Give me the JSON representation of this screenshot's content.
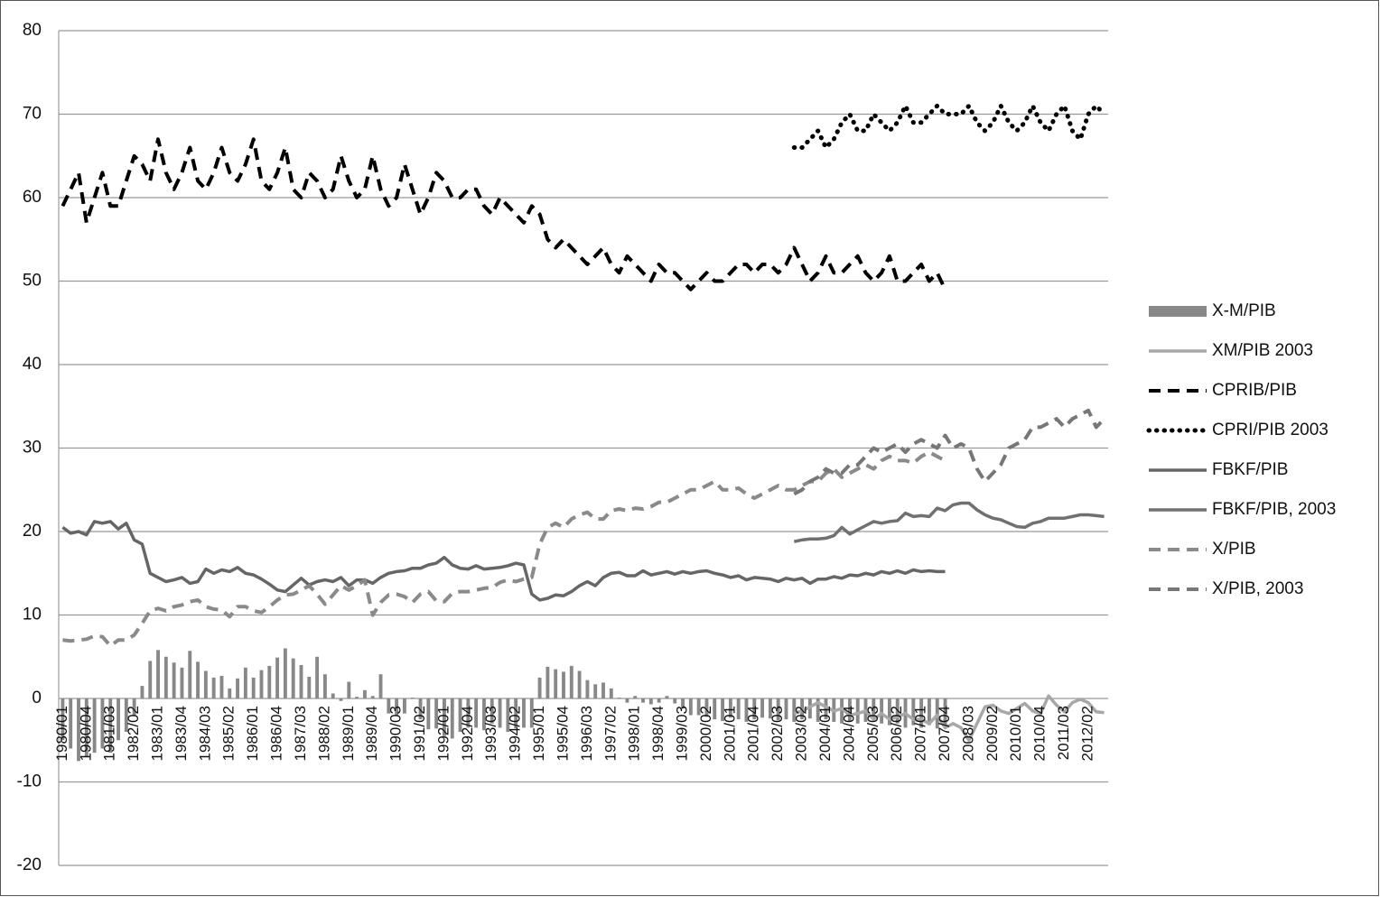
{
  "chart_data": {
    "type": "line",
    "categories": [
      "1980/01",
      null,
      null,
      "1980/04",
      null,
      null,
      "1981/03",
      null,
      null,
      "1982/02",
      null,
      null,
      "1983/01",
      null,
      null,
      "1983/04",
      null,
      null,
      "1984/03",
      null,
      null,
      "1985/02",
      null,
      null,
      "1986/01",
      null,
      null,
      "1986/04",
      null,
      null,
      "1987/03",
      null,
      null,
      "1988/02",
      null,
      null,
      "1989/01",
      null,
      null,
      "1989/04",
      null,
      null,
      "1990/03",
      null,
      null,
      "1991/02",
      null,
      null,
      "1992/01",
      null,
      null,
      "1992/04",
      null,
      null,
      "1993/03",
      null,
      null,
      "1994/02",
      null,
      null,
      "1995/01",
      null,
      null,
      "1995/04",
      null,
      null,
      "1996/03",
      null,
      null,
      "1997/02",
      null,
      null,
      "1998/01",
      null,
      null,
      "1998/04",
      null,
      null,
      "1999/03",
      null,
      null,
      "2000/02",
      null,
      null,
      "2001/01",
      null,
      null,
      "2001/04",
      null,
      null,
      "2002/03",
      null,
      null,
      "2003/02",
      null,
      null,
      "2004/01",
      null,
      null,
      "2004/04",
      null,
      null,
      "2005/03",
      null,
      null,
      "2006/02",
      null,
      null,
      "2007/01",
      null,
      null,
      "2007/04",
      null,
      null,
      "2008/03",
      null,
      null,
      "2009/02",
      null,
      null,
      "2010/01",
      null,
      null,
      "2010/04",
      null,
      null,
      "2011/03",
      null,
      null,
      "2012/02",
      null,
      null
    ],
    "ylim": [
      -20,
      80
    ],
    "yticks": [
      -20,
      -10,
      0,
      10,
      20,
      30,
      40,
      50,
      60,
      70,
      80
    ],
    "grid": true,
    "legend": "right",
    "series": [
      {
        "name": "X-M/PIB",
        "color": "#888888",
        "style": "bar",
        "values": [
          -5,
          -6,
          -7.5,
          -7,
          -6.5,
          -6,
          -6.5,
          -5,
          -4,
          -2,
          1.5,
          4.5,
          5.8,
          5,
          4.3,
          3.7,
          5.7,
          4.4,
          3.3,
          2.5,
          2.7,
          1.2,
          2.4,
          3.7,
          2.5,
          3.4,
          3.9,
          4.9,
          6,
          4.8,
          4,
          2.6,
          5,
          2.9,
          0.6,
          -0.3,
          2,
          0.2,
          1,
          0.3,
          2.9,
          -1.8,
          -2,
          -1.8,
          0.1,
          -2.5,
          -3.7,
          -3.6,
          -4.5,
          -4.8,
          -4,
          -3.5,
          -3.5,
          -3.8,
          -3,
          -3.5,
          -4,
          -3.6,
          -3.5,
          -3.5,
          2.5,
          3.8,
          3.5,
          3.2,
          3.9,
          3.3,
          2.2,
          1.7,
          1.9,
          1.2,
          0.1,
          -0.5,
          0.3,
          -0.5,
          -0.7,
          -0.5,
          0.3,
          -0.6,
          -1.2,
          -2,
          -2,
          -2.2,
          -2.5,
          -2.7,
          -2.3,
          -2.5,
          -2.8,
          -2.5,
          -2.3,
          -2.4,
          -2.6,
          -2.5,
          -2.8,
          -2.5,
          -2.4,
          -2.8,
          -2.5,
          -2.8,
          -3,
          -2.7,
          -3,
          -2.8,
          -2.5,
          -3,
          -3.2,
          -3,
          -3.5,
          -3.2,
          -3.5,
          -3.2,
          -3.6,
          -3.5,
          null,
          null,
          null,
          null,
          null,
          null,
          null,
          null,
          null,
          null,
          null,
          null,
          null,
          null,
          null,
          null,
          null,
          null,
          null,
          null
        ]
      },
      {
        "name": "XM/PIB 2003",
        "color": "#a8a8a8",
        "style": "solid",
        "values": [
          null,
          null,
          null,
          null,
          null,
          null,
          null,
          null,
          null,
          null,
          null,
          null,
          null,
          null,
          null,
          null,
          null,
          null,
          null,
          null,
          null,
          null,
          null,
          null,
          null,
          null,
          null,
          null,
          null,
          null,
          null,
          null,
          null,
          null,
          null,
          null,
          null,
          null,
          null,
          null,
          null,
          null,
          null,
          null,
          null,
          null,
          null,
          null,
          null,
          null,
          null,
          null,
          null,
          null,
          null,
          null,
          null,
          null,
          null,
          null,
          null,
          null,
          null,
          null,
          null,
          null,
          null,
          null,
          null,
          null,
          null,
          null,
          null,
          null,
          null,
          null,
          null,
          null,
          null,
          null,
          null,
          null,
          null,
          null,
          null,
          null,
          null,
          null,
          null,
          null,
          null,
          null,
          -1.8,
          -1.5,
          -1,
          -0.5,
          -1,
          -1.5,
          -1.2,
          -2,
          -1.8,
          -1.5,
          -2.5,
          -1.8,
          -2.5,
          -2.2,
          -1.8,
          -2.5,
          -2.5,
          -3,
          -2,
          -3.5,
          -3,
          -3.5,
          -5,
          -3,
          -1,
          -0.8,
          -1.5,
          -1.8,
          -1.2,
          -0.6,
          -1.5,
          -1.8,
          0.3,
          -0.8,
          -1.6,
          -0.5,
          -0.1,
          -0.5,
          -1.6,
          -1.7
        ]
      },
      {
        "name": "CPRIB/PIB",
        "color": "#000000",
        "style": "dashed",
        "values": [
          59,
          61,
          63,
          57,
          60,
          63,
          59,
          59,
          62,
          65,
          64,
          62,
          67,
          63,
          61,
          63,
          66,
          62,
          61,
          63,
          66,
          63,
          62,
          64,
          67,
          62,
          61,
          63,
          66,
          61,
          60,
          63,
          62,
          60,
          61,
          65,
          62,
          60,
          61,
          65,
          61,
          59,
          60,
          64,
          61,
          58,
          60,
          63,
          62,
          60,
          60,
          61,
          61,
          59,
          58,
          60,
          59,
          58,
          57,
          59,
          58,
          55,
          54,
          55,
          54,
          53,
          52,
          53,
          54,
          52,
          51,
          53,
          52,
          51,
          50,
          52,
          51,
          51,
          50,
          49,
          50,
          51,
          50,
          50,
          51,
          52,
          52,
          51,
          52,
          52,
          51,
          52,
          54,
          52,
          50,
          51,
          53,
          51,
          51,
          52,
          53,
          51,
          50,
          51,
          53,
          50,
          50,
          51,
          52,
          50,
          51,
          49,
          null,
          null,
          null,
          null,
          null,
          null,
          null,
          null,
          null,
          null,
          null,
          null,
          null,
          null,
          null,
          null,
          null,
          null,
          null,
          null
        ]
      },
      {
        "name": "CPRI/PIB 2003",
        "color": "#000000",
        "style": "dotted",
        "values": [
          null,
          null,
          null,
          null,
          null,
          null,
          null,
          null,
          null,
          null,
          null,
          null,
          null,
          null,
          null,
          null,
          null,
          null,
          null,
          null,
          null,
          null,
          null,
          null,
          null,
          null,
          null,
          null,
          null,
          null,
          null,
          null,
          null,
          null,
          null,
          null,
          null,
          null,
          null,
          null,
          null,
          null,
          null,
          null,
          null,
          null,
          null,
          null,
          null,
          null,
          null,
          null,
          null,
          null,
          null,
          null,
          null,
          null,
          null,
          null,
          null,
          null,
          null,
          null,
          null,
          null,
          null,
          null,
          null,
          null,
          null,
          null,
          null,
          null,
          null,
          null,
          null,
          null,
          null,
          null,
          null,
          null,
          null,
          null,
          null,
          null,
          null,
          null,
          null,
          null,
          null,
          null,
          66,
          66,
          67,
          68,
          66,
          67,
          69,
          70,
          68,
          68,
          70,
          69,
          68,
          69,
          71,
          69,
          69,
          70,
          71,
          70,
          70,
          70,
          71,
          69,
          68,
          69,
          71,
          69,
          68,
          69,
          71,
          69,
          68,
          70,
          71,
          68,
          67,
          70,
          71,
          70
        ]
      },
      {
        "name": "FBKF/PIB",
        "color": "#666666",
        "style": "solid",
        "values": [
          20.5,
          19.8,
          20,
          19.6,
          21.2,
          21,
          21.2,
          20.3,
          21,
          19,
          18.5,
          15,
          14.5,
          14,
          14.2,
          14.5,
          13.8,
          14,
          15.5,
          15,
          15.4,
          15.2,
          15.7,
          15,
          14.8,
          14.3,
          13.7,
          13,
          12.8,
          13.6,
          14.4,
          13.6,
          14,
          14.2,
          14,
          14.5,
          13.5,
          14.2,
          14.2,
          13.8,
          14.5,
          15,
          15.2,
          15.3,
          15.6,
          15.6,
          16,
          16.2,
          16.9,
          16,
          15.6,
          15.5,
          15.9,
          15.5,
          15.6,
          15.7,
          15.9,
          16.2,
          16,
          12.5,
          11.8,
          12,
          12.4,
          12.3,
          12.8,
          13.5,
          14,
          13.5,
          14.5,
          15,
          15.1,
          14.7,
          14.7,
          15.3,
          14.8,
          15,
          15.2,
          14.9,
          15.2,
          15,
          15.2,
          15.3,
          15,
          14.8,
          14.5,
          14.7,
          14.2,
          14.5,
          14.4,
          14.3,
          14,
          14.4,
          14.2,
          14.4,
          13.8,
          14.3,
          14.3,
          14.6,
          14.4,
          14.8,
          14.7,
          15,
          14.8,
          15.2,
          15,
          15.3,
          15,
          15.4,
          15.2,
          15.3,
          15.2,
          15.2,
          null,
          null,
          null,
          null,
          null,
          null,
          null,
          null,
          null,
          null,
          null,
          null,
          null,
          null,
          null,
          null,
          null,
          null,
          null,
          null
        ]
      },
      {
        "name": "FBKF/PIB, 2003",
        "color": "#707070",
        "style": "solid",
        "values": [
          null,
          null,
          null,
          null,
          null,
          null,
          null,
          null,
          null,
          null,
          null,
          null,
          null,
          null,
          null,
          null,
          null,
          null,
          null,
          null,
          null,
          null,
          null,
          null,
          null,
          null,
          null,
          null,
          null,
          null,
          null,
          null,
          null,
          null,
          null,
          null,
          null,
          null,
          null,
          null,
          null,
          null,
          null,
          null,
          null,
          null,
          null,
          null,
          null,
          null,
          null,
          null,
          null,
          null,
          null,
          null,
          null,
          null,
          null,
          null,
          null,
          null,
          null,
          null,
          null,
          null,
          null,
          null,
          null,
          null,
          null,
          null,
          null,
          null,
          null,
          null,
          null,
          null,
          null,
          null,
          null,
          null,
          null,
          null,
          null,
          null,
          null,
          null,
          null,
          null,
          null,
          null,
          18.8,
          19,
          19.1,
          19.1,
          19.2,
          19.5,
          20.5,
          19.7,
          20.2,
          20.7,
          21.2,
          21,
          21.2,
          21.3,
          22.2,
          21.8,
          21.9,
          21.8,
          22.8,
          22.5,
          23.2,
          23.4,
          23.4,
          22.6,
          22,
          21.6,
          21.4,
          21,
          20.6,
          20.5,
          21,
          21.2,
          21.6,
          21.6,
          21.6,
          21.8,
          22,
          22,
          21.9,
          21.8
        ]
      },
      {
        "name": "X/PIB",
        "color": "#8a8a8a",
        "style": "dashed",
        "values": [
          7,
          6.9,
          7,
          7.1,
          7.5,
          7.4,
          6.3,
          7,
          7,
          7.6,
          9,
          10.5,
          10.8,
          10.5,
          11,
          11.2,
          11.6,
          11.8,
          11,
          10.7,
          10.6,
          9.8,
          11,
          11,
          10.5,
          10.3,
          11,
          11.8,
          12.4,
          12.5,
          13,
          13.5,
          12.5,
          11.3,
          12.4,
          13.5,
          13,
          13.5,
          14.2,
          10,
          11.5,
          12.4,
          12.5,
          12.2,
          11.5,
          12.5,
          12.8,
          11.7,
          11.6,
          12.6,
          12.8,
          12.8,
          13,
          13.2,
          13.3,
          13.9,
          14.2,
          14,
          14.3,
          14.5,
          18.5,
          20.5,
          21,
          20.5,
          21.5,
          22,
          22.3,
          21.5,
          21.5,
          22.5,
          22.7,
          22.5,
          22.8,
          22.7,
          23,
          23.5,
          23.5,
          24,
          24.5,
          25,
          25,
          25.5,
          26,
          25,
          25,
          25.2,
          24.5,
          24,
          24.5,
          25,
          25.5,
          25,
          25,
          25.5,
          26,
          26,
          27,
          27.5,
          26.5,
          27,
          27.5,
          28,
          27.5,
          28.5,
          29,
          28.5,
          28.5,
          28.2,
          29,
          29.5,
          29,
          28.5,
          null,
          null,
          null,
          null,
          null,
          null,
          null,
          null,
          null,
          null,
          null,
          null,
          null,
          null,
          null,
          null,
          null,
          null,
          null,
          null
        ]
      },
      {
        "name": "X/PIB, 2003",
        "color": "#777777",
        "style": "dashed",
        "values": [
          null,
          null,
          null,
          null,
          null,
          null,
          null,
          null,
          null,
          null,
          null,
          null,
          null,
          null,
          null,
          null,
          null,
          null,
          null,
          null,
          null,
          null,
          null,
          null,
          null,
          null,
          null,
          null,
          null,
          null,
          null,
          null,
          null,
          null,
          null,
          null,
          null,
          null,
          null,
          null,
          null,
          null,
          null,
          null,
          null,
          null,
          null,
          null,
          null,
          null,
          null,
          null,
          null,
          null,
          null,
          null,
          null,
          null,
          null,
          null,
          null,
          null,
          null,
          null,
          null,
          null,
          null,
          null,
          null,
          null,
          null,
          null,
          null,
          null,
          null,
          null,
          null,
          null,
          null,
          null,
          null,
          null,
          null,
          null,
          null,
          null,
          null,
          null,
          null,
          null,
          null,
          null,
          24.5,
          25,
          26,
          26.5,
          27.5,
          27,
          27,
          28,
          28,
          29,
          30,
          29.5,
          30,
          30.5,
          29.5,
          30.5,
          31,
          30.5,
          30,
          31.5,
          30,
          30.5,
          30,
          27.5,
          26,
          27,
          28,
          30,
          30.5,
          31,
          32.5,
          32.5,
          33,
          33.5,
          32.5,
          33.5,
          34,
          34.5,
          32.5,
          33.5
        ]
      }
    ]
  }
}
